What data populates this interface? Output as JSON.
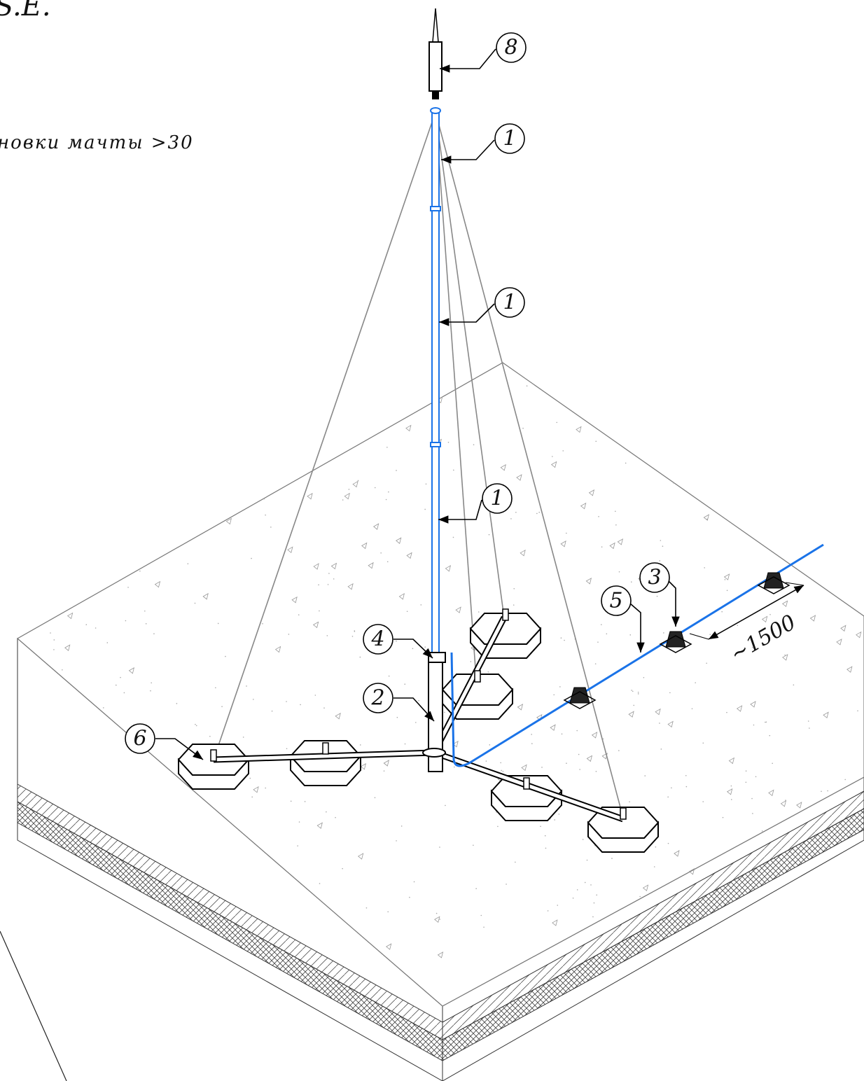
{
  "header": {
    "title": "S.E.",
    "note": "новки мачты >30"
  },
  "callouts": [
    {
      "label": "8"
    },
    {
      "label": "1"
    },
    {
      "label": "1"
    },
    {
      "label": "1"
    },
    {
      "label": "4"
    },
    {
      "label": "2"
    },
    {
      "label": "6"
    },
    {
      "label": "5"
    },
    {
      "label": "3"
    }
  ],
  "dimension": {
    "label": "~1500"
  }
}
